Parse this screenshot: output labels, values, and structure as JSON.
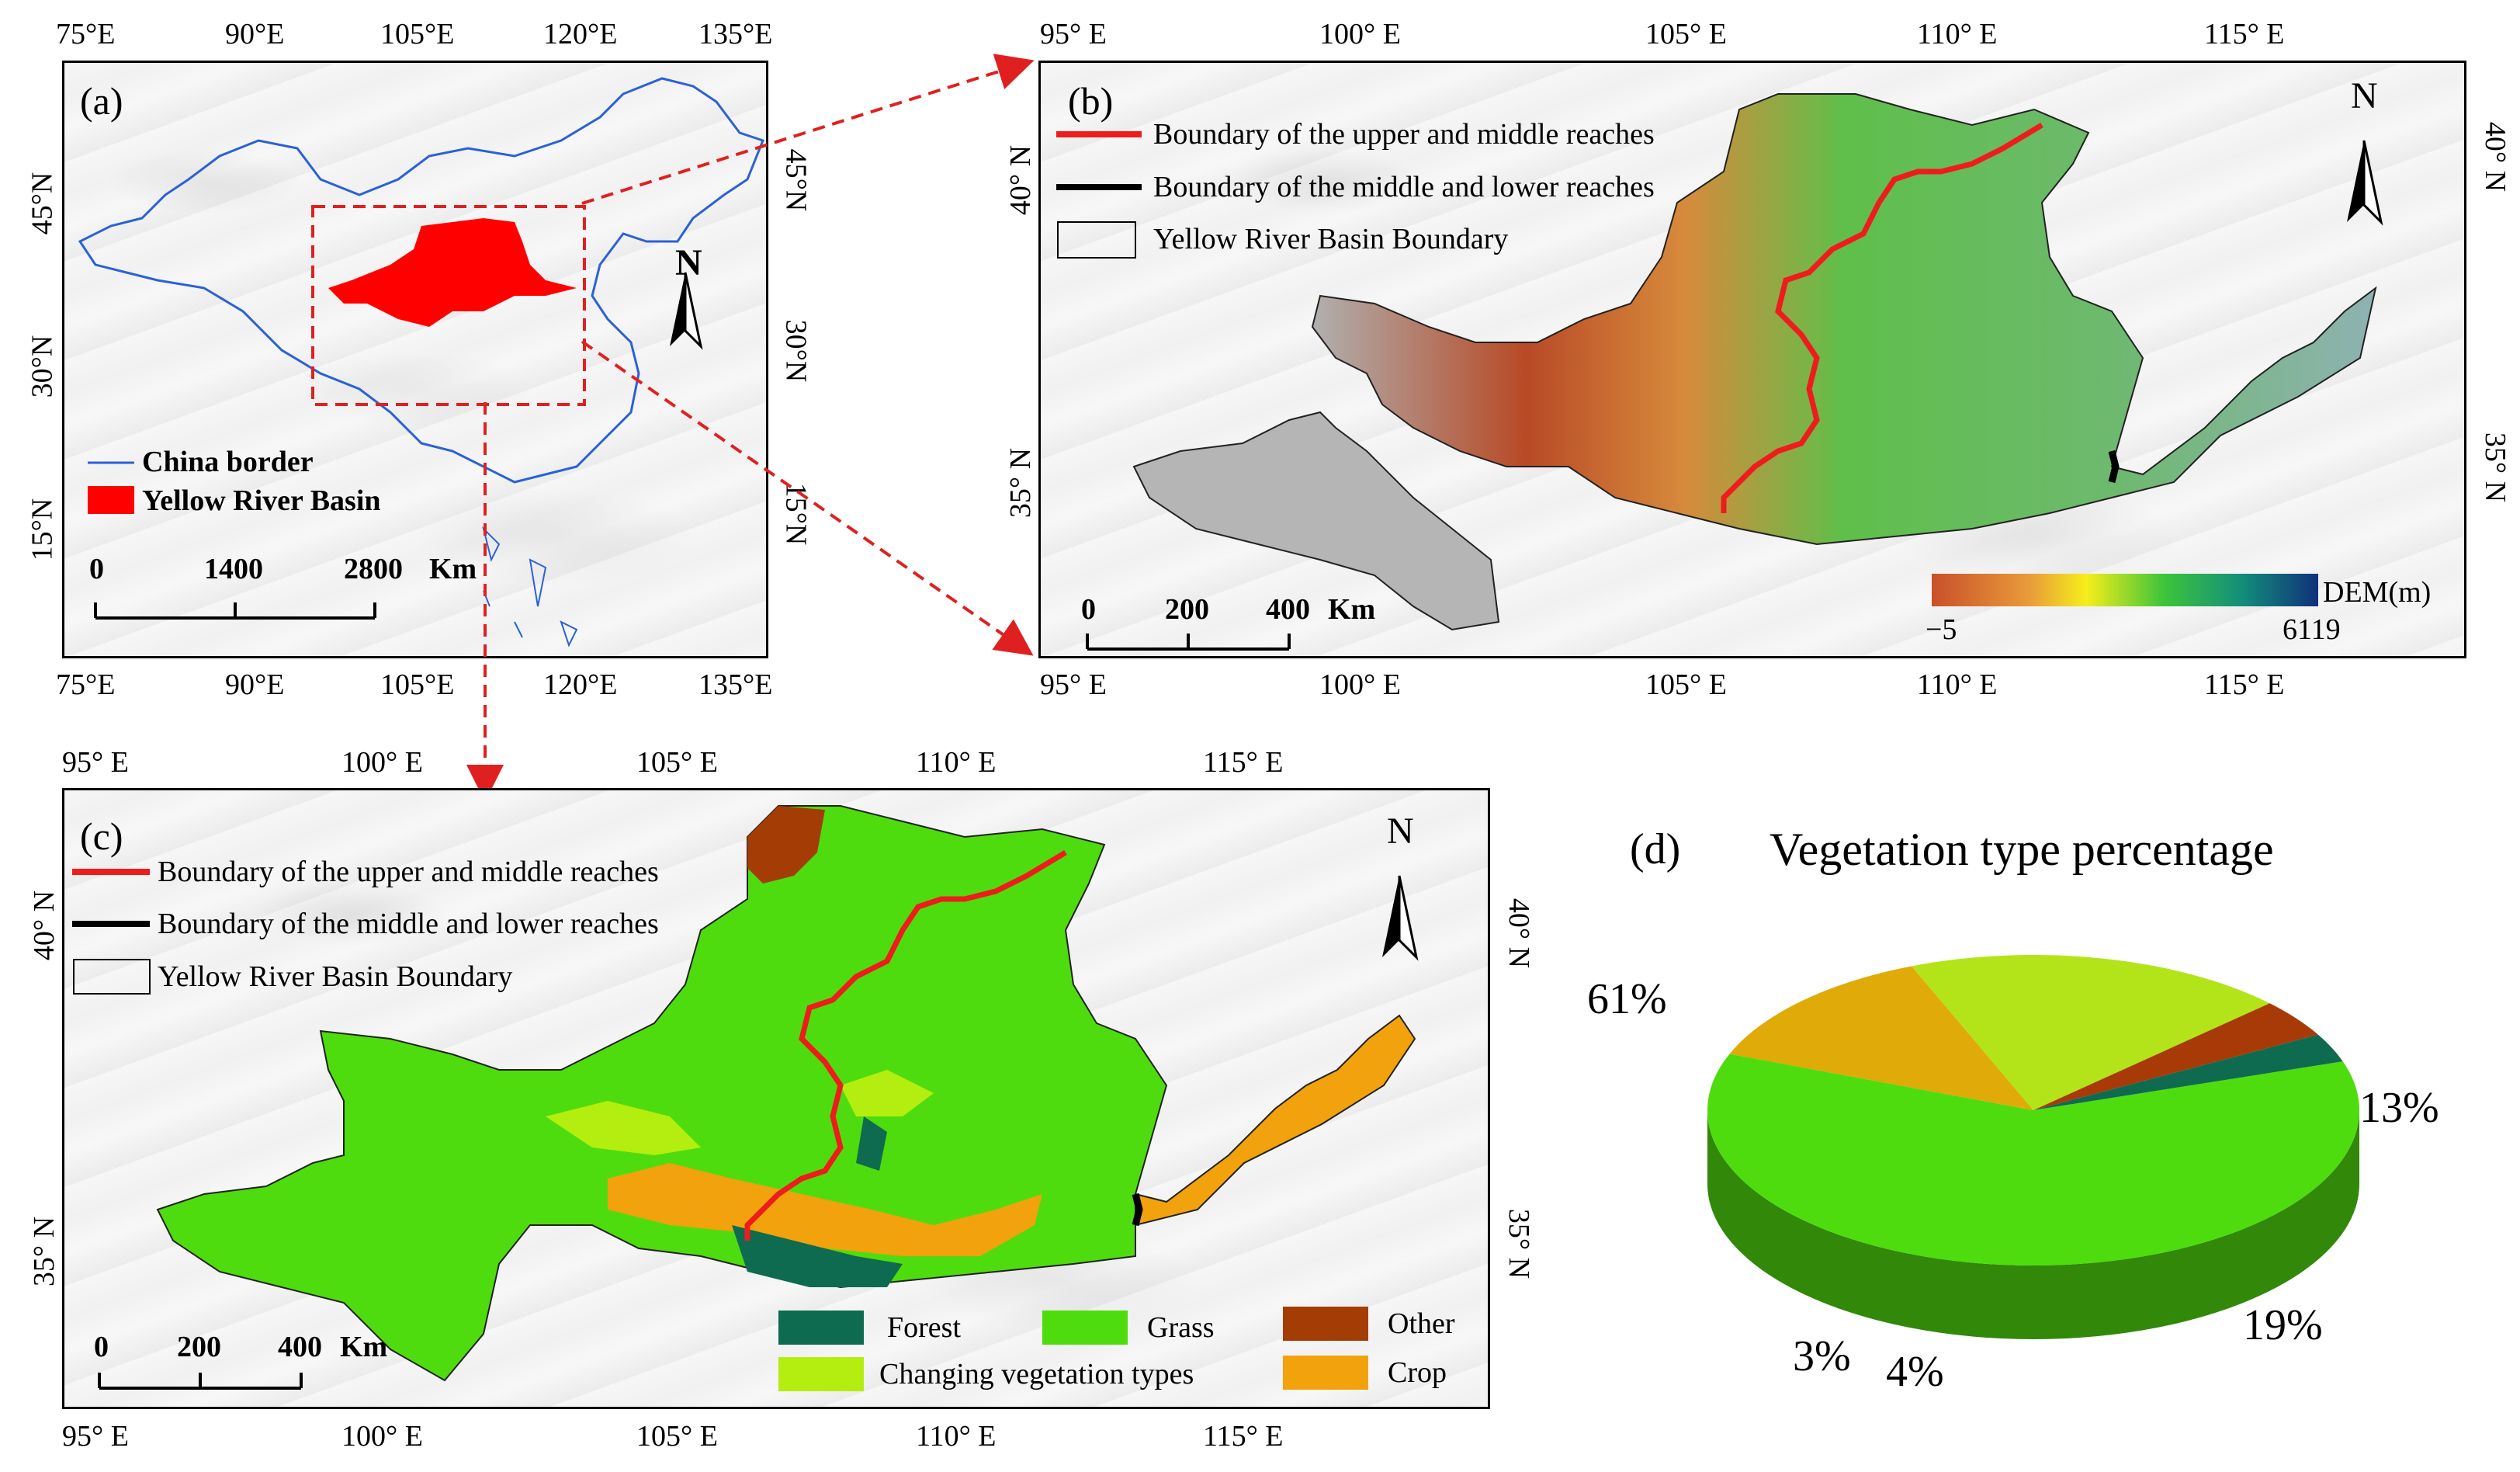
{
  "panel_a": {
    "label": "(a)",
    "top_ticks": [
      "75°E",
      "90°E",
      "105°E",
      "120°E",
      "135°E"
    ],
    "bottom_ticks": [
      "75°E",
      "90°E",
      "105°E",
      "120°E",
      "135°E"
    ],
    "left_ticks": [
      "45°N",
      "30°N",
      "15°N"
    ],
    "right_ticks": [
      "45°N",
      "30°N",
      "15°N"
    ],
    "north": "N",
    "legend": {
      "china_border": "China border",
      "yellow_river_basin": "Yellow River Basin"
    },
    "scale": [
      "0",
      "1400",
      "2800",
      "Km"
    ]
  },
  "panel_b": {
    "label": "(b)",
    "top_ticks": [
      "95° E",
      "100° E",
      "105° E",
      "110° E",
      "115° E"
    ],
    "bottom_ticks": [
      "95° E",
      "100° E",
      "105° E",
      "110° E",
      "115° E"
    ],
    "left_ticks": [
      "40° N",
      "35° N"
    ],
    "right_ticks": [
      "40° N",
      "35° N"
    ],
    "north": "N",
    "legend": {
      "upper_middle": "Boundary of the upper and middle reaches",
      "middle_lower": "Boundary of the middle and lower reaches",
      "basin": "Yellow River Basin Boundary"
    },
    "scale": [
      "0",
      "200",
      "400",
      "Km"
    ],
    "dem": {
      "title": "DEM(m)",
      "min": "−5",
      "max": "6119"
    }
  },
  "panel_c": {
    "label": "(c)",
    "top_ticks": [
      "95° E",
      "100° E",
      "105° E",
      "110° E",
      "115° E"
    ],
    "bottom_ticks": [
      "95° E",
      "100° E",
      "105° E",
      "110° E",
      "115° E"
    ],
    "left_ticks": [
      "40° N",
      "35° N"
    ],
    "right_ticks": [
      "40° N",
      "35° N"
    ],
    "north": "N",
    "legend": {
      "upper_middle": "Boundary of the upper and middle reaches",
      "middle_lower": "Boundary of the middle and lower reaches",
      "basin": "Yellow River Basin Boundary"
    },
    "scale": [
      "0",
      "200",
      "400",
      "Km"
    ],
    "veg_legend": {
      "forest": "Forest",
      "grass": "Grass",
      "other": "Other",
      "changing": "Changing vegetation types",
      "crop": "Crop"
    }
  },
  "colors": {
    "forest": "#0e6b4f",
    "grass": "#4fdc0e",
    "other": "#a33c05",
    "changing": "#b3ee10",
    "crop": "#f2a20c",
    "upper_middle_line": "#ee1c1c",
    "middle_lower_line": "#000000",
    "china_border": "#2a62d6",
    "basin_red": "#ff0000"
  },
  "chart_data": {
    "type": "pie",
    "label": "(d)",
    "title": "Vegetation type percentage",
    "slices": [
      {
        "name": "Grass",
        "value": 61,
        "label": "61%",
        "color": "#4fdc0e"
      },
      {
        "name": "Crop",
        "value": 13,
        "label": "13%",
        "color": "#e0aa08"
      },
      {
        "name": "Changing vegetation types",
        "value": 19,
        "label": "19%",
        "color": "#b3e41a"
      },
      {
        "name": "Other",
        "value": 4,
        "label": "4%",
        "color": "#a83a08"
      },
      {
        "name": "Forest",
        "value": 3,
        "label": "3%",
        "color": "#0e6b4f"
      }
    ]
  }
}
